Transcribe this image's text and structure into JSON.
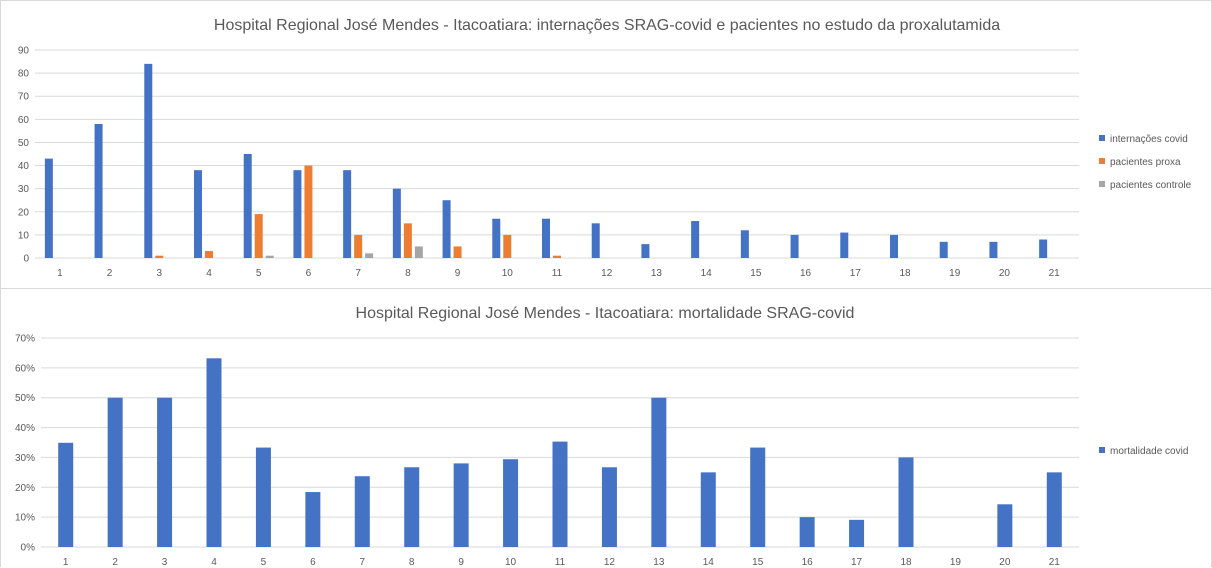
{
  "chart_data": [
    {
      "type": "bar",
      "title": "Hospital Regional José Mendes - Itacoatiara: internações SRAG-covid e pacientes no estudo da proxalutamida",
      "categories": [
        "1",
        "2",
        "3",
        "4",
        "5",
        "6",
        "7",
        "8",
        "9",
        "10",
        "11",
        "12",
        "13",
        "14",
        "15",
        "16",
        "17",
        "18",
        "19",
        "20",
        "21"
      ],
      "series": [
        {
          "name": "internações covid",
          "color": "#4472c4",
          "values": [
            43,
            58,
            84,
            38,
            45,
            38,
            38,
            30,
            25,
            17,
            17,
            15,
            6,
            16,
            12,
            10,
            11,
            10,
            7,
            7,
            8
          ]
        },
        {
          "name": "pacientes proxa",
          "color": "#ed7d31",
          "values": [
            0,
            0,
            1,
            3,
            19,
            40,
            10,
            15,
            5,
            10,
            1,
            0,
            0,
            0,
            0,
            0,
            0,
            0,
            0,
            0,
            0
          ]
        },
        {
          "name": "pacientes controle",
          "color": "#a5a5a5",
          "values": [
            0,
            0,
            0,
            0,
            1,
            0,
            2,
            5,
            0,
            0,
            0,
            0,
            0,
            0,
            0,
            0,
            0,
            0,
            0,
            0,
            0
          ]
        }
      ],
      "yticks": [
        "0",
        "10",
        "20",
        "30",
        "40",
        "50",
        "60",
        "70",
        "80",
        "90"
      ],
      "ylim": [
        0,
        90
      ],
      "grid": true,
      "legend": "right"
    },
    {
      "type": "bar",
      "title": "Hospital Regional José Mendes - Itacoatiara: mortalidade SRAG-covid",
      "categories": [
        "1",
        "2",
        "3",
        "4",
        "5",
        "6",
        "7",
        "8",
        "9",
        "10",
        "11",
        "12",
        "13",
        "14",
        "15",
        "16",
        "17",
        "18",
        "19",
        "20",
        "21"
      ],
      "series": [
        {
          "name": "mortalidade covid",
          "color": "#4472c4",
          "values": [
            0.349,
            0.5,
            0.5,
            0.632,
            0.333,
            0.184,
            0.237,
            0.267,
            0.28,
            0.294,
            0.353,
            0.267,
            0.5,
            0.25,
            0.333,
            0.1,
            0.091,
            0.3,
            0,
            0.143,
            0.25
          ]
        }
      ],
      "yticks": [
        "0%",
        "10%",
        "20%",
        "30%",
        "40%",
        "50%",
        "60%",
        "70%"
      ],
      "ylim": [
        0,
        0.7
      ],
      "grid": true,
      "legend": "right"
    }
  ]
}
